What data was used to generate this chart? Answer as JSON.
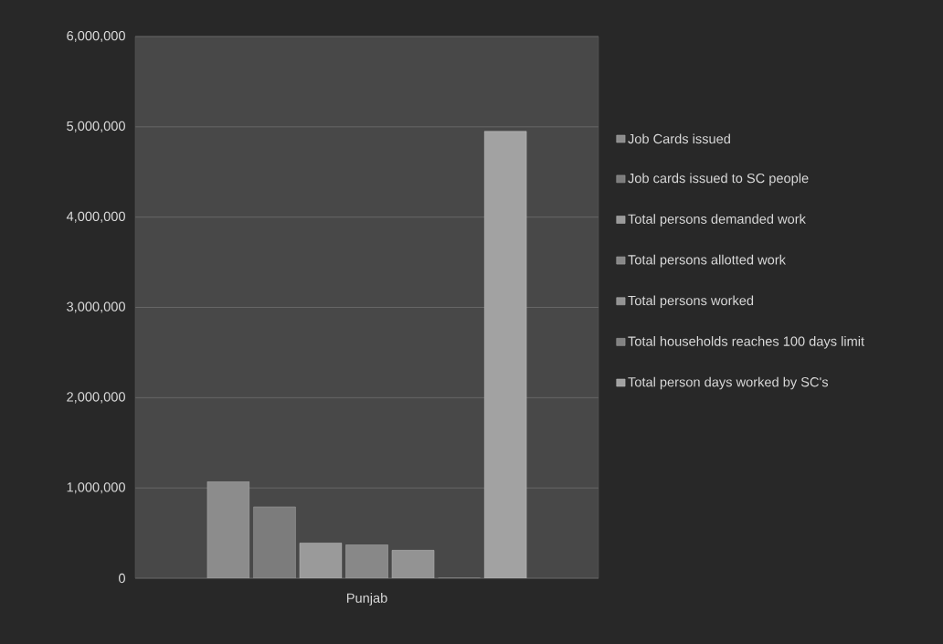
{
  "chart_data": {
    "type": "bar",
    "categories": [
      "Punjab"
    ],
    "series": [
      {
        "name": "Job Cards issued",
        "color": "#8c8c8c",
        "values": [
          1070000
        ]
      },
      {
        "name": "Job cards issued to SC people",
        "color": "#7c7c7c",
        "values": [
          790000
        ]
      },
      {
        "name": "Total persons demanded work",
        "color": "#9a9a9a",
        "values": [
          390000
        ]
      },
      {
        "name": "Total persons allotted work",
        "color": "#888888",
        "values": [
          370000
        ]
      },
      {
        "name": "Total persons worked",
        "color": "#939393",
        "values": [
          310000
        ]
      },
      {
        "name": "Total households reaches 100 days limit",
        "color": "#828282",
        "values": [
          0
        ]
      },
      {
        "name": "Total person days worked by SC's",
        "color": "#a2a2a2",
        "values": [
          4950000
        ]
      }
    ],
    "ylim": [
      0,
      6000000
    ],
    "yticks": [
      {
        "value": 0,
        "label": "0"
      },
      {
        "value": 1000000,
        "label": "1,000,000"
      },
      {
        "value": 2000000,
        "label": "2,000,000"
      },
      {
        "value": 3000000,
        "label": "3,000,000"
      },
      {
        "value": 4000000,
        "label": "4,000,000"
      },
      {
        "value": 5000000,
        "label": "5,000,000"
      },
      {
        "value": 6000000,
        "label": "6,000,000"
      }
    ],
    "grid": "y",
    "legend": "right"
  }
}
